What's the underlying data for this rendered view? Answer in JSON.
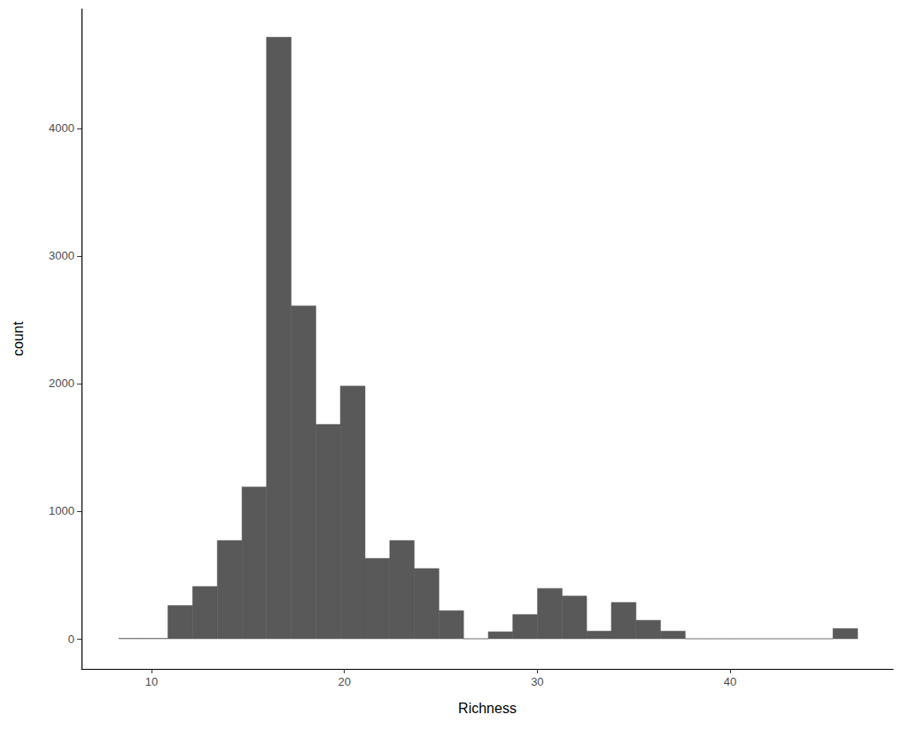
{
  "chart_data": {
    "type": "histogram",
    "xlabel": "Richness",
    "ylabel": "count",
    "bins": [
      8.3,
      9.58,
      10.85,
      12.13,
      13.41,
      14.69,
      15.96,
      17.24,
      18.52,
      19.79,
      21.07,
      22.35,
      23.62,
      24.9,
      26.18,
      27.46,
      28.73,
      30.01,
      31.29,
      32.56,
      33.84,
      35.12,
      36.39,
      37.67,
      38.95,
      40.23,
      41.5,
      42.78,
      44.06,
      45.33,
      46.61
    ],
    "counts": [
      3,
      3,
      260,
      410,
      770,
      1190,
      4715,
      2610,
      1680,
      1980,
      630,
      770,
      550,
      220,
      0,
      55,
      190,
      395,
      335,
      60,
      285,
      145,
      60,
      0,
      0,
      0,
      0,
      0,
      0,
      80
    ],
    "color": "#595959",
    "xlim": [
      6.37,
      48.45
    ],
    "xticks": [
      10,
      20,
      30,
      40
    ],
    "ylim": [
      -236,
      4937
    ],
    "yticks": [
      0,
      1000,
      2000,
      3000,
      4000
    ],
    "grid": false
  }
}
